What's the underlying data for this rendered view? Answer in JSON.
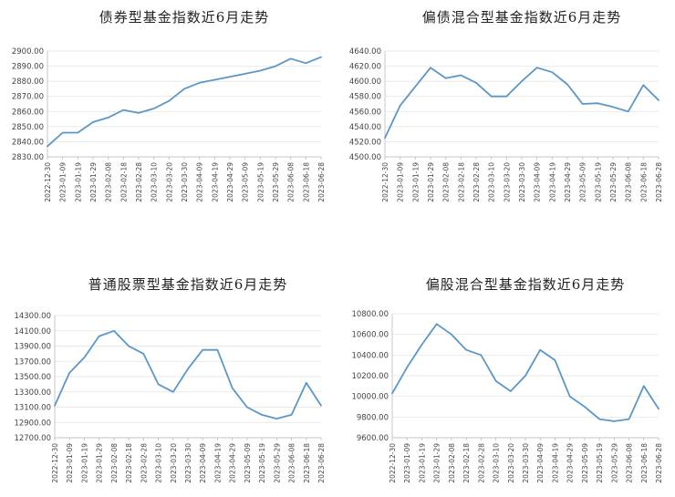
{
  "colors": {
    "line": "#5a97c9"
  },
  "x_dates": [
    "2022-12-30",
    "2023-01-09",
    "2023-01-19",
    "2023-01-29",
    "2023-02-08",
    "2023-02-18",
    "2023-02-28",
    "2023-03-10",
    "2023-03-20",
    "2023-03-30",
    "2023-04-09",
    "2023-04-19",
    "2023-04-29",
    "2023-05-09",
    "2023-05-19",
    "2023-05-29",
    "2023-06-08",
    "2023-06-18",
    "2023-06-28"
  ],
  "chart_data": [
    {
      "type": "line",
      "title": "债券型基金指数近6月走势",
      "yticks": [
        "2830.00",
        "2840.00",
        "2850.00",
        "2860.00",
        "2870.00",
        "2880.00",
        "2890.00",
        "2900.00"
      ],
      "ylim": [
        2830,
        2900
      ],
      "series": [
        {
          "values": [
            2837,
            2846,
            2846,
            2853,
            2856,
            2861,
            2859,
            2862,
            2867,
            2875,
            2879,
            2881,
            2883,
            2885,
            2887,
            2890,
            2895,
            2892,
            2896
          ]
        }
      ]
    },
    {
      "type": "line",
      "title": "偏债混合型基金指数近6月走势",
      "yticks": [
        "4500.00",
        "4520.00",
        "4540.00",
        "4560.00",
        "4580.00",
        "4600.00",
        "4620.00",
        "4640.00"
      ],
      "ylim": [
        4500,
        4640
      ],
      "series": [
        {
          "values": [
            4525,
            4568,
            4593,
            4618,
            4604,
            4608,
            4598,
            4580,
            4580,
            4600,
            4618,
            4612,
            4596,
            4570,
            4571,
            4566,
            4560,
            4595,
            4575
          ]
        }
      ]
    },
    {
      "type": "line",
      "title": "普通股票型基金指数近6月走势",
      "yticks": [
        "12700.00",
        "12900.00",
        "13100.00",
        "13300.00",
        "13500.00",
        "13700.00",
        "13900.00",
        "14100.00",
        "14300.00"
      ],
      "ylim": [
        12700,
        14300
      ],
      "series": [
        {
          "values": [
            13120,
            13550,
            13750,
            14030,
            14100,
            13900,
            13800,
            13400,
            13300,
            13600,
            13850,
            13850,
            13350,
            13100,
            13000,
            12950,
            13000,
            13420,
            13120
          ]
        }
      ]
    },
    {
      "type": "line",
      "title": "偏股混合型基金指数近6月走势",
      "yticks": [
        "9600.00",
        "9800.00",
        "10000.00",
        "10200.00",
        "10400.00",
        "10600.00",
        "10800.00"
      ],
      "ylim": [
        9600,
        10800
      ],
      "series": [
        {
          "values": [
            10030,
            10280,
            10500,
            10700,
            10600,
            10450,
            10400,
            10150,
            10050,
            10200,
            10450,
            10350,
            10000,
            9900,
            9780,
            9760,
            9780,
            10100,
            9880
          ]
        }
      ]
    }
  ]
}
